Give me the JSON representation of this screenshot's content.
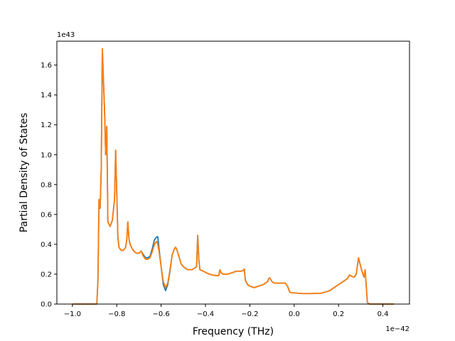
{
  "chart_data": {
    "type": "line",
    "title": "",
    "xlabel": "Frequency (THz)",
    "ylabel": "Partial Density of States",
    "x_offset_label": "1e−42",
    "y_offset_label": "1e43",
    "xlim": [
      -1.07,
      0.52
    ],
    "ylim": [
      0,
      1.76
    ],
    "x_ticks": [
      -1.0,
      -0.8,
      -0.6,
      -0.4,
      -0.2,
      0.0,
      0.2,
      0.4
    ],
    "x_tick_labels": [
      "−1.0",
      "−0.8",
      "−0.6",
      "−0.4",
      "−0.2",
      "0.0",
      "0.2",
      "0.4"
    ],
    "y_ticks": [
      0.0,
      0.2,
      0.4,
      0.6,
      0.8,
      1.0,
      1.2,
      1.4,
      1.6
    ],
    "y_tick_labels": [
      "0.0",
      "0.2",
      "0.4",
      "0.6",
      "0.8",
      "1.0",
      "1.2",
      "1.4",
      "1.6"
    ],
    "grid": false,
    "legend": "none",
    "series": [
      {
        "color": "#1f77b4",
        "points": [
          [
            -1.0,
            0.0
          ],
          [
            -0.9,
            0.0
          ],
          [
            -0.89,
            0.0
          ],
          [
            -0.885,
            0.15
          ],
          [
            -0.88,
            0.7
          ],
          [
            -0.875,
            0.64
          ],
          [
            -0.87,
            0.9
          ],
          [
            -0.865,
            1.71
          ],
          [
            -0.86,
            1.5
          ],
          [
            -0.855,
            1.3
          ],
          [
            -0.85,
            1.0
          ],
          [
            -0.845,
            1.19
          ],
          [
            -0.84,
            0.55
          ],
          [
            -0.83,
            0.52
          ],
          [
            -0.82,
            0.56
          ],
          [
            -0.81,
            0.7
          ],
          [
            -0.805,
            1.03
          ],
          [
            -0.8,
            0.75
          ],
          [
            -0.795,
            0.45
          ],
          [
            -0.79,
            0.38
          ],
          [
            -0.78,
            0.36
          ],
          [
            -0.77,
            0.36
          ],
          [
            -0.76,
            0.38
          ],
          [
            -0.755,
            0.43
          ],
          [
            -0.75,
            0.55
          ],
          [
            -0.745,
            0.44
          ],
          [
            -0.74,
            0.4
          ],
          [
            -0.73,
            0.37
          ],
          [
            -0.72,
            0.35
          ],
          [
            -0.71,
            0.34
          ],
          [
            -0.7,
            0.34
          ],
          [
            -0.69,
            0.355
          ],
          [
            -0.68,
            0.33
          ],
          [
            -0.67,
            0.31
          ],
          [
            -0.66,
            0.31
          ],
          [
            -0.65,
            0.32
          ],
          [
            -0.64,
            0.37
          ],
          [
            -0.63,
            0.43
          ],
          [
            -0.62,
            0.45
          ],
          [
            -0.615,
            0.45
          ],
          [
            -0.61,
            0.38
          ],
          [
            -0.6,
            0.25
          ],
          [
            -0.59,
            0.13
          ],
          [
            -0.58,
            0.09
          ],
          [
            -0.57,
            0.13
          ],
          [
            -0.56,
            0.22
          ],
          [
            -0.55,
            0.33
          ],
          [
            -0.54,
            0.37
          ],
          [
            -0.535,
            0.38
          ],
          [
            -0.53,
            0.37
          ],
          [
            -0.52,
            0.32
          ],
          [
            -0.51,
            0.27
          ],
          [
            -0.5,
            0.25
          ],
          [
            -0.49,
            0.24
          ],
          [
            -0.48,
            0.23
          ],
          [
            -0.47,
            0.23
          ],
          [
            -0.46,
            0.23
          ],
          [
            -0.45,
            0.24
          ],
          [
            -0.44,
            0.25
          ],
          [
            -0.435,
            0.46
          ],
          [
            -0.43,
            0.3
          ],
          [
            -0.425,
            0.23
          ],
          [
            -0.41,
            0.22
          ],
          [
            -0.39,
            0.205
          ],
          [
            -0.37,
            0.195
          ],
          [
            -0.35,
            0.19
          ],
          [
            -0.34,
            0.19
          ],
          [
            -0.335,
            0.23
          ],
          [
            -0.33,
            0.21
          ],
          [
            -0.32,
            0.2
          ],
          [
            -0.3,
            0.2
          ],
          [
            -0.28,
            0.21
          ],
          [
            -0.26,
            0.22
          ],
          [
            -0.24,
            0.22
          ],
          [
            -0.23,
            0.225
          ],
          [
            -0.225,
            0.235
          ],
          [
            -0.22,
            0.16
          ],
          [
            -0.21,
            0.13
          ],
          [
            -0.2,
            0.12
          ],
          [
            -0.18,
            0.11
          ],
          [
            -0.16,
            0.12
          ],
          [
            -0.14,
            0.13
          ],
          [
            -0.12,
            0.15
          ],
          [
            -0.115,
            0.17
          ],
          [
            -0.11,
            0.175
          ],
          [
            -0.1,
            0.15
          ],
          [
            -0.09,
            0.14
          ],
          [
            -0.07,
            0.14
          ],
          [
            -0.05,
            0.14
          ],
          [
            -0.04,
            0.14
          ],
          [
            -0.03,
            0.12
          ],
          [
            -0.02,
            0.08
          ],
          [
            -0.01,
            0.075
          ],
          [
            0.0,
            0.075
          ],
          [
            0.02,
            0.072
          ],
          [
            0.04,
            0.07
          ],
          [
            0.06,
            0.07
          ],
          [
            0.08,
            0.07
          ],
          [
            0.1,
            0.072
          ],
          [
            0.12,
            0.072
          ],
          [
            0.14,
            0.08
          ],
          [
            0.16,
            0.09
          ],
          [
            0.18,
            0.11
          ],
          [
            0.2,
            0.13
          ],
          [
            0.22,
            0.15
          ],
          [
            0.24,
            0.17
          ],
          [
            0.25,
            0.195
          ],
          [
            0.26,
            0.185
          ],
          [
            0.27,
            0.18
          ],
          [
            0.28,
            0.2
          ],
          [
            0.29,
            0.31
          ],
          [
            0.3,
            0.25
          ],
          [
            0.31,
            0.2
          ],
          [
            0.315,
            0.18
          ],
          [
            0.32,
            0.23
          ],
          [
            0.325,
            0.12
          ],
          [
            0.33,
            0.01
          ],
          [
            0.34,
            0.0
          ],
          [
            0.45,
            0.0
          ]
        ]
      },
      {
        "color": "#ff7f0e",
        "points": [
          [
            -1.0,
            0.0
          ],
          [
            -0.9,
            0.0
          ],
          [
            -0.89,
            0.0
          ],
          [
            -0.885,
            0.15
          ],
          [
            -0.88,
            0.7
          ],
          [
            -0.875,
            0.64
          ],
          [
            -0.87,
            0.9
          ],
          [
            -0.865,
            1.71
          ],
          [
            -0.86,
            1.5
          ],
          [
            -0.855,
            1.3
          ],
          [
            -0.85,
            1.0
          ],
          [
            -0.845,
            1.19
          ],
          [
            -0.84,
            0.55
          ],
          [
            -0.83,
            0.52
          ],
          [
            -0.82,
            0.56
          ],
          [
            -0.81,
            0.7
          ],
          [
            -0.805,
            1.03
          ],
          [
            -0.8,
            0.75
          ],
          [
            -0.795,
            0.45
          ],
          [
            -0.79,
            0.38
          ],
          [
            -0.78,
            0.36
          ],
          [
            -0.77,
            0.36
          ],
          [
            -0.76,
            0.38
          ],
          [
            -0.755,
            0.43
          ],
          [
            -0.75,
            0.55
          ],
          [
            -0.745,
            0.44
          ],
          [
            -0.74,
            0.4
          ],
          [
            -0.73,
            0.37
          ],
          [
            -0.72,
            0.35
          ],
          [
            -0.71,
            0.34
          ],
          [
            -0.7,
            0.34
          ],
          [
            -0.69,
            0.355
          ],
          [
            -0.68,
            0.32
          ],
          [
            -0.67,
            0.3
          ],
          [
            -0.66,
            0.3
          ],
          [
            -0.65,
            0.31
          ],
          [
            -0.64,
            0.35
          ],
          [
            -0.63,
            0.4
          ],
          [
            -0.62,
            0.42
          ],
          [
            -0.615,
            0.4
          ],
          [
            -0.61,
            0.36
          ],
          [
            -0.6,
            0.25
          ],
          [
            -0.59,
            0.15
          ],
          [
            -0.58,
            0.11
          ],
          [
            -0.57,
            0.14
          ],
          [
            -0.56,
            0.23
          ],
          [
            -0.55,
            0.33
          ],
          [
            -0.54,
            0.37
          ],
          [
            -0.535,
            0.38
          ],
          [
            -0.53,
            0.37
          ],
          [
            -0.52,
            0.32
          ],
          [
            -0.51,
            0.27
          ],
          [
            -0.5,
            0.25
          ],
          [
            -0.49,
            0.24
          ],
          [
            -0.48,
            0.23
          ],
          [
            -0.47,
            0.23
          ],
          [
            -0.46,
            0.23
          ],
          [
            -0.45,
            0.24
          ],
          [
            -0.44,
            0.25
          ],
          [
            -0.435,
            0.46
          ],
          [
            -0.43,
            0.3
          ],
          [
            -0.425,
            0.23
          ],
          [
            -0.41,
            0.22
          ],
          [
            -0.39,
            0.205
          ],
          [
            -0.37,
            0.195
          ],
          [
            -0.35,
            0.19
          ],
          [
            -0.34,
            0.19
          ],
          [
            -0.335,
            0.23
          ],
          [
            -0.33,
            0.21
          ],
          [
            -0.32,
            0.2
          ],
          [
            -0.3,
            0.2
          ],
          [
            -0.28,
            0.21
          ],
          [
            -0.26,
            0.22
          ],
          [
            -0.24,
            0.22
          ],
          [
            -0.23,
            0.225
          ],
          [
            -0.225,
            0.235
          ],
          [
            -0.22,
            0.16
          ],
          [
            -0.21,
            0.13
          ],
          [
            -0.2,
            0.12
          ],
          [
            -0.18,
            0.11
          ],
          [
            -0.16,
            0.12
          ],
          [
            -0.14,
            0.13
          ],
          [
            -0.12,
            0.15
          ],
          [
            -0.115,
            0.17
          ],
          [
            -0.11,
            0.175
          ],
          [
            -0.1,
            0.15
          ],
          [
            -0.09,
            0.14
          ],
          [
            -0.07,
            0.14
          ],
          [
            -0.05,
            0.14
          ],
          [
            -0.04,
            0.14
          ],
          [
            -0.03,
            0.12
          ],
          [
            -0.02,
            0.08
          ],
          [
            -0.01,
            0.075
          ],
          [
            0.0,
            0.075
          ],
          [
            0.02,
            0.072
          ],
          [
            0.04,
            0.07
          ],
          [
            0.06,
            0.07
          ],
          [
            0.08,
            0.07
          ],
          [
            0.1,
            0.072
          ],
          [
            0.12,
            0.072
          ],
          [
            0.14,
            0.08
          ],
          [
            0.16,
            0.09
          ],
          [
            0.18,
            0.11
          ],
          [
            0.2,
            0.13
          ],
          [
            0.22,
            0.15
          ],
          [
            0.24,
            0.17
          ],
          [
            0.25,
            0.195
          ],
          [
            0.26,
            0.185
          ],
          [
            0.27,
            0.18
          ],
          [
            0.28,
            0.2
          ],
          [
            0.29,
            0.31
          ],
          [
            0.3,
            0.25
          ],
          [
            0.31,
            0.2
          ],
          [
            0.315,
            0.18
          ],
          [
            0.32,
            0.23
          ],
          [
            0.325,
            0.12
          ],
          [
            0.33,
            0.01
          ],
          [
            0.34,
            0.0
          ],
          [
            0.45,
            0.0
          ]
        ]
      }
    ]
  }
}
